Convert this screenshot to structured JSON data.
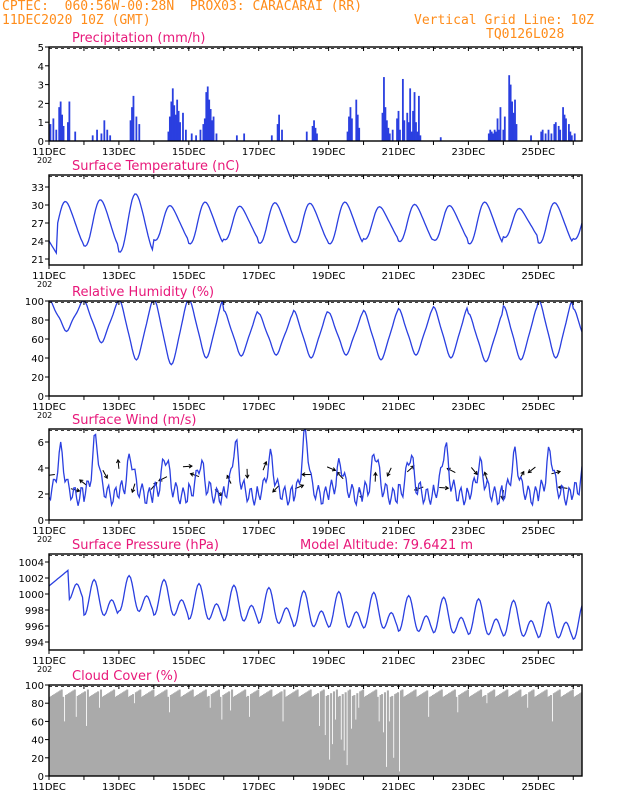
{
  "colors": {
    "header": "#ff8c1a",
    "title": "#e8187a",
    "series": "#2a3fe0",
    "cloud": "#aaaaaa",
    "axis": "#000000"
  },
  "header": {
    "line1": "CPTEC:  060:56W-00:28N  PROX03: CARACARAI (RR)",
    "line2": "11DEC2020 10Z (GMT)",
    "grid_line": "Vertical Grid Line: 10Z",
    "code": "TQ0126L028"
  },
  "x_axis": {
    "ticks": [
      "11DEC",
      "13DEC",
      "15DEC",
      "17DEC",
      "19DEC",
      "21DEC",
      "23DEC",
      "25DEC"
    ],
    "year_fragment": "202"
  },
  "chart_data": [
    {
      "type": "bar",
      "title": "Precipitation (mm/h)",
      "xlabel": "",
      "ylabel": "",
      "ylim": [
        0,
        5
      ],
      "yticks": [
        0,
        1,
        2,
        3,
        4,
        5
      ],
      "x_unit": "hours since 11DEC 10Z",
      "events": [
        {
          "hour": 1,
          "value": 0.9
        },
        {
          "hour": 3,
          "value": 1.2
        },
        {
          "hour": 5,
          "value": 0.6
        },
        {
          "hour": 7,
          "value": 1.8
        },
        {
          "hour": 8,
          "value": 2.1
        },
        {
          "hour": 9,
          "value": 1.4
        },
        {
          "hour": 10,
          "value": 0.8
        },
        {
          "hour": 13,
          "value": 1.0
        },
        {
          "hour": 14,
          "value": 2.1
        },
        {
          "hour": 18,
          "value": 0.5
        },
        {
          "hour": 30,
          "value": 0.3
        },
        {
          "hour": 33,
          "value": 0.6
        },
        {
          "hour": 36,
          "value": 0.4
        },
        {
          "hour": 38,
          "value": 1.1
        },
        {
          "hour": 40,
          "value": 0.6
        },
        {
          "hour": 42,
          "value": 0.3
        },
        {
          "hour": 56,
          "value": 1.1
        },
        {
          "hour": 57,
          "value": 1.8
        },
        {
          "hour": 58,
          "value": 2.4
        },
        {
          "hour": 60,
          "value": 1.3
        },
        {
          "hour": 62,
          "value": 0.9
        },
        {
          "hour": 82,
          "value": 0.5
        },
        {
          "hour": 83,
          "value": 1.3
        },
        {
          "hour": 84,
          "value": 2.1
        },
        {
          "hour": 85,
          "value": 2.8
        },
        {
          "hour": 86,
          "value": 1.9
        },
        {
          "hour": 87,
          "value": 1.4
        },
        {
          "hour": 88,
          "value": 2.2
        },
        {
          "hour": 89,
          "value": 1.6
        },
        {
          "hour": 90,
          "value": 1.0
        },
        {
          "hour": 92,
          "value": 1.5
        },
        {
          "hour": 94,
          "value": 0.6
        },
        {
          "hour": 98,
          "value": 0.4
        },
        {
          "hour": 101,
          "value": 0.3
        },
        {
          "hour": 104,
          "value": 0.6
        },
        {
          "hour": 106,
          "value": 0.9
        },
        {
          "hour": 107,
          "value": 1.2
        },
        {
          "hour": 108,
          "value": 2.6
        },
        {
          "hour": 109,
          "value": 2.9
        },
        {
          "hour": 110,
          "value": 2.2
        },
        {
          "hour": 111,
          "value": 1.7
        },
        {
          "hour": 112,
          "value": 1.1
        },
        {
          "hour": 113,
          "value": 1.3
        },
        {
          "hour": 115,
          "value": 0.4
        },
        {
          "hour": 129,
          "value": 0.3
        },
        {
          "hour": 134,
          "value": 0.4
        },
        {
          "hour": 153,
          "value": 0.3
        },
        {
          "hour": 157,
          "value": 0.9
        },
        {
          "hour": 158,
          "value": 1.4
        },
        {
          "hour": 160,
          "value": 0.6
        },
        {
          "hour": 177,
          "value": 0.5
        },
        {
          "hour": 181,
          "value": 0.8
        },
        {
          "hour": 182,
          "value": 1.1
        },
        {
          "hour": 183,
          "value": 0.7
        },
        {
          "hour": 184,
          "value": 0.4
        },
        {
          "hour": 205,
          "value": 0.5
        },
        {
          "hour": 206,
          "value": 1.3
        },
        {
          "hour": 207,
          "value": 1.8
        },
        {
          "hour": 208,
          "value": 1.2
        },
        {
          "hour": 211,
          "value": 2.2
        },
        {
          "hour": 212,
          "value": 1.4
        },
        {
          "hour": 213,
          "value": 0.7
        },
        {
          "hour": 229,
          "value": 1.5
        },
        {
          "hour": 230,
          "value": 3.4
        },
        {
          "hour": 231,
          "value": 1.8
        },
        {
          "hour": 232,
          "value": 1.1
        },
        {
          "hour": 233,
          "value": 0.7
        },
        {
          "hour": 234,
          "value": 0.4
        },
        {
          "hour": 236,
          "value": 0.6
        },
        {
          "hour": 239,
          "value": 1.2
        },
        {
          "hour": 240,
          "value": 1.6
        },
        {
          "hour": 241,
          "value": 0.6
        },
        {
          "hour": 243,
          "value": 3.3
        },
        {
          "hour": 244,
          "value": 1.1
        },
        {
          "hour": 246,
          "value": 1.5
        },
        {
          "hour": 247,
          "value": 1.0
        },
        {
          "hour": 248,
          "value": 2.8
        },
        {
          "hour": 249,
          "value": 0.5
        },
        {
          "hour": 250,
          "value": 1.6
        },
        {
          "hour": 251,
          "value": 2.6
        },
        {
          "hour": 252,
          "value": 1.0
        },
        {
          "hour": 253,
          "value": 0.5
        },
        {
          "hour": 254,
          "value": 2.4
        },
        {
          "hour": 255,
          "value": 0.3
        },
        {
          "hour": 269,
          "value": 0.2
        },
        {
          "hour": 302,
          "value": 0.4
        },
        {
          "hour": 303,
          "value": 0.6
        },
        {
          "hour": 304,
          "value": 0.5
        },
        {
          "hour": 305,
          "value": 0.4
        },
        {
          "hour": 306,
          "value": 0.6
        },
        {
          "hour": 307,
          "value": 0.5
        },
        {
          "hour": 308,
          "value": 1.2
        },
        {
          "hour": 309,
          "value": 0.6
        },
        {
          "hour": 310,
          "value": 1.8
        },
        {
          "hour": 312,
          "value": 0.6
        },
        {
          "hour": 313,
          "value": 1.3
        },
        {
          "hour": 316,
          "value": 3.5
        },
        {
          "hour": 317,
          "value": 3.0
        },
        {
          "hour": 318,
          "value": 2.1
        },
        {
          "hour": 319,
          "value": 1.5
        },
        {
          "hour": 320,
          "value": 2.2
        },
        {
          "hour": 321,
          "value": 0.9
        },
        {
          "hour": 331,
          "value": 0.3
        },
        {
          "hour": 338,
          "value": 0.5
        },
        {
          "hour": 339,
          "value": 0.6
        },
        {
          "hour": 341,
          "value": 0.4
        },
        {
          "hour": 343,
          "value": 0.6
        },
        {
          "hour": 345,
          "value": 0.4
        },
        {
          "hour": 347,
          "value": 0.9
        },
        {
          "hour": 348,
          "value": 1.0
        },
        {
          "hour": 350,
          "value": 0.8
        },
        {
          "hour": 351,
          "value": 0.6
        },
        {
          "hour": 353,
          "value": 1.8
        },
        {
          "hour": 354,
          "value": 1.4
        },
        {
          "hour": 355,
          "value": 1.2
        },
        {
          "hour": 357,
          "value": 0.9
        },
        {
          "hour": 358,
          "value": 0.5
        },
        {
          "hour": 359,
          "value": 0.3
        },
        {
          "hour": 361,
          "value": 0.4
        }
      ]
    },
    {
      "type": "line",
      "title": "Surface Temperature (nC)",
      "xlabel": "",
      "ylabel": "",
      "ylim": [
        20,
        35
      ],
      "yticks": [
        21,
        24,
        27,
        30,
        33
      ],
      "series": [
        {
          "start_value": 24,
          "mean": 27,
          "amplitude": [
            3.5,
            3.8,
            4.8,
            2.8,
            3.4,
            2.7,
            3.3,
            3.2,
            3.4,
            2.6,
            3.0,
            2.8,
            3.4,
            2.3,
            3.3,
            2.6
          ]
        }
      ]
    },
    {
      "type": "line",
      "title": "Relative Humidity (%)",
      "xlabel": "",
      "ylabel": "",
      "ylim": [
        0,
        100
      ],
      "yticks": [
        0,
        20,
        40,
        60,
        80,
        100
      ],
      "series": [
        {
          "daily_max": [
            100,
            98,
            100,
            100,
            100,
            88,
            85,
            88,
            86,
            88,
            90,
            92,
            85,
            93,
            100,
            90
          ],
          "daily_min": [
            70,
            58,
            40,
            35,
            42,
            44,
            45,
            42,
            45,
            40,
            45,
            42,
            38,
            40,
            42,
            45
          ]
        }
      ]
    },
    {
      "type": "line",
      "title": "Surface Wind (m/s)",
      "xlabel": "",
      "ylabel": "",
      "ylim": [
        0,
        7
      ],
      "yticks": [
        0,
        2,
        4,
        6
      ],
      "series": [
        {
          "daily_peak": [
            5.3,
            6.2,
            4.8,
            4.9,
            4.4,
            5.8,
            4.8,
            6.6,
            4.3,
            5.2,
            5.0,
            5.6,
            4.2,
            5.0,
            5.2,
            4.0
          ]
        }
      ],
      "vectors": "hourly wind direction arrows"
    },
    {
      "type": "line",
      "title": "Surface Pressure (hPa)",
      "xlabel": "",
      "ylabel": "",
      "ylim": [
        993,
        1005
      ],
      "yticks": [
        994,
        996,
        998,
        1000,
        1002,
        1004
      ],
      "annotation": "Model Altitude: 79.6421 m",
      "series": [
        {
          "daily_mean": [
            1001.0,
            999.0,
            999.5,
            999.0,
            998.5,
            998.3,
            998.0,
            997.6,
            997.5,
            997.4,
            997.0,
            996.8,
            996.6,
            996.4,
            996.2,
            996.0
          ],
          "amplitude": 2.8
        }
      ]
    },
    {
      "type": "area",
      "title": "Cloud Cover (%)",
      "xlabel": "",
      "ylabel": "",
      "ylim": [
        0,
        100
      ],
      "yticks": [
        0,
        20,
        40,
        60,
        80,
        100
      ],
      "series": [
        {
          "typical_value": 90,
          "dips": [
            {
              "hour": 10,
              "value": 60
            },
            {
              "hour": 18,
              "value": 65
            },
            {
              "hour": 25,
              "value": 55
            },
            {
              "hour": 34,
              "value": 75
            },
            {
              "hour": 58,
              "value": 80
            },
            {
              "hour": 82,
              "value": 70
            },
            {
              "hour": 110,
              "value": 75
            },
            {
              "hour": 118,
              "value": 62
            },
            {
              "hour": 124,
              "value": 72
            },
            {
              "hour": 137,
              "value": 65
            },
            {
              "hour": 160,
              "value": 60
            },
            {
              "hour": 185,
              "value": 55
            },
            {
              "hour": 189,
              "value": 45
            },
            {
              "hour": 192,
              "value": 18
            },
            {
              "hour": 194,
              "value": 35
            },
            {
              "hour": 196,
              "value": 62
            },
            {
              "hour": 200,
              "value": 40
            },
            {
              "hour": 202,
              "value": 28
            },
            {
              "hour": 204,
              "value": 12
            },
            {
              "hour": 207,
              "value": 52
            },
            {
              "hour": 210,
              "value": 62
            },
            {
              "hour": 212,
              "value": 75
            },
            {
              "hour": 226,
              "value": 60
            },
            {
              "hour": 229,
              "value": 48
            },
            {
              "hour": 231,
              "value": 10
            },
            {
              "hour": 233,
              "value": 60
            },
            {
              "hour": 236,
              "value": 20
            },
            {
              "hour": 240,
              "value": 5
            },
            {
              "hour": 260,
              "value": 65
            },
            {
              "hour": 280,
              "value": 70
            },
            {
              "hour": 300,
              "value": 80
            },
            {
              "hour": 328,
              "value": 75
            },
            {
              "hour": 345,
              "value": 60
            }
          ]
        }
      ]
    }
  ]
}
